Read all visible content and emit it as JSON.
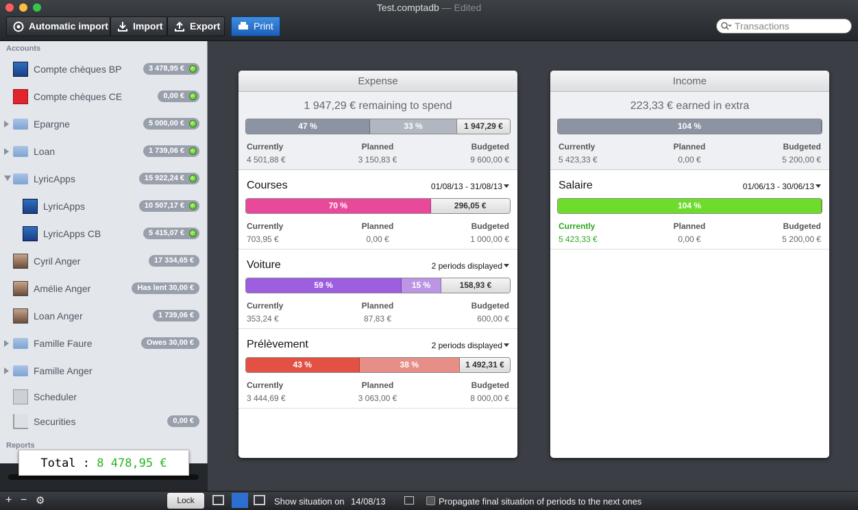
{
  "window": {
    "title": "Test.comptadb",
    "status": "— Edited"
  },
  "toolbar": {
    "automatic_import": "Automatic import",
    "import": "Import",
    "export": "Export",
    "print": "Print",
    "search_placeholder": "Transactions"
  },
  "sidebar": {
    "accounts_heading": "Accounts",
    "accounts": [
      {
        "name": "Compte chèques BP",
        "balance": "3 478,95 €"
      },
      {
        "name": "Compte chèques CE",
        "balance": "0,00 €"
      },
      {
        "name": "Epargne",
        "balance": "5 000,00 €"
      },
      {
        "name": "Loan",
        "balance": "1 739,06 €"
      },
      {
        "name": "LyricApps",
        "balance": "15 922,24 €"
      },
      {
        "name": "LyricApps",
        "balance": "10 507,17 €"
      },
      {
        "name": "LyricApps CB",
        "balance": "5 415,07 €"
      },
      {
        "name": "Cyril Anger",
        "balance": "17 334,65 €"
      },
      {
        "name": "Amélie Anger",
        "balance": "Has lent 30,00 €"
      },
      {
        "name": "Loan Anger",
        "balance": "1 739,06 €"
      },
      {
        "name": "Famille Faure",
        "balance": "Owes 30,00 €"
      },
      {
        "name": "Famille Anger"
      },
      {
        "name": "Scheduler"
      },
      {
        "name": "Securities",
        "balance": "0,00 €"
      }
    ],
    "reports_heading": "Reports",
    "total": {
      "label": "Total :",
      "value": "8 478,95 €"
    }
  },
  "panels": [
    {
      "title": "Expense",
      "summary": {
        "text": "1 947,29 € remaining to spend",
        "color": "#8c93a3",
        "bar": [
          "47 %",
          "33 %",
          "1 947,29 €"
        ],
        "stats": [
          {
            "label": "Currently",
            "value": "4 501,88 €"
          },
          {
            "label": "Planned",
            "value": "3 150,83 €"
          },
          {
            "label": "Budgeted",
            "value": "9 600,00 €"
          }
        ]
      },
      "budgets": [
        {
          "name": "Courses",
          "period": "01/08/13 - 31/08/13",
          "color": "#e9499b",
          "bar": [
            "70 %",
            "296,05 €"
          ],
          "stats": [
            {
              "label": "Currently",
              "value": "703,95 €"
            },
            {
              "label": "Planned",
              "value": "0,00 €"
            },
            {
              "label": "Budgeted",
              "value": "1 000,00 €"
            }
          ]
        },
        {
          "name": "Voiture",
          "period": "2 periods displayed",
          "color": "#9d5ee0",
          "bar": [
            "59 %",
            "15 %",
            "158,93 €"
          ],
          "stats": [
            {
              "label": "Currently",
              "value": "353,24 €"
            },
            {
              "label": "Planned",
              "value": "87,83 €"
            },
            {
              "label": "Budgeted",
              "value": "600,00 €"
            }
          ]
        },
        {
          "name": "Prélèvement",
          "period": "2 periods displayed",
          "color": "#e25144",
          "bar": [
            "43 %",
            "38 %",
            "1 492,31 €"
          ],
          "stats": [
            {
              "label": "Currently",
              "value": "3 444,69 €"
            },
            {
              "label": "Planned",
              "value": "3 063,00 €"
            },
            {
              "label": "Budgeted",
              "value": "8 000,00 €"
            }
          ]
        }
      ]
    },
    {
      "title": "Income",
      "summary": {
        "text": "223,33 € earned in extra",
        "color": "#8c93a3",
        "bar": [
          "104 %"
        ],
        "stats": [
          {
            "label": "Currently",
            "value": "5 423,33 €"
          },
          {
            "label": "Planned",
            "value": "0,00 €"
          },
          {
            "label": "Budgeted",
            "value": "5 200,00 €"
          }
        ]
      },
      "budgets": [
        {
          "name": "Salaire",
          "period": "01/06/13 - 30/06/13",
          "color": "#6ddc2a",
          "highlight_color": "#2ea51f",
          "bar": [
            "104 %"
          ],
          "stats": [
            {
              "label": "Currently",
              "value": "5 423,33 €"
            },
            {
              "label": "Planned",
              "value": "0,00 €"
            },
            {
              "label": "Budgeted",
              "value": "5 200,00 €"
            }
          ]
        }
      ]
    }
  ],
  "statusbar": {
    "lock": "Lock",
    "show_situation": "Show situation on",
    "date": "14/08/13",
    "propagate": "Propagate final situation of periods to the next ones"
  }
}
